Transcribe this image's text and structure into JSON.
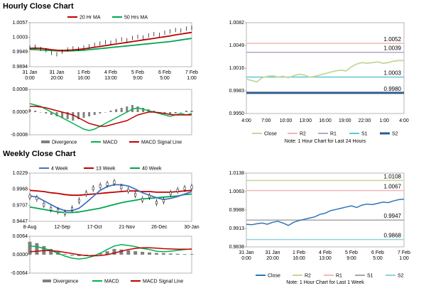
{
  "sections": {
    "hourly_title": "Hourly Close Chart",
    "weekly_title": "Weekly Close Chart"
  },
  "colors": {
    "ma_short": "#c00000",
    "ma_long": "#00a651",
    "macd": "#00b050",
    "macd_signal": "#c00000",
    "divergence": "#808080",
    "close_hourly": "#c4d79b",
    "close_weekly": "#2e75b6",
    "short_ma_weekly": "#4472c4",
    "r2": "#f4b6b6",
    "r1": "#b7a6c9",
    "s1": "#5bc8d8",
    "s2": "#2e5c8a",
    "r2_weekly": "#c4d79b",
    "r1_weekly": "#f4b6b6",
    "s1_weekly": "#a6a6a6",
    "s2_weekly": "#8fd3e0"
  },
  "chart_data": [
    {
      "id": "hourly_price",
      "type": "line",
      "legend": [
        "20 Hr MA",
        "50 Hrs MA"
      ],
      "y_ticks": [
        "1.0057",
        "1.0003",
        "0.9949",
        "0.9894"
      ],
      "ylim": [
        0.9894,
        1.0057
      ],
      "x_ticks": [
        "31 Jan\n0:00",
        "31 Jan\n20:00",
        "1 Feb\n16:00",
        "4 Feb\n13:00",
        "5 Feb\n9:00",
        "6 Feb\n5:00",
        "7 Feb\n1:00"
      ],
      "close": [
        0.9965,
        0.9968,
        0.996,
        0.9955,
        0.9945,
        0.994,
        0.995,
        0.9958,
        0.9962,
        0.996,
        0.9965,
        0.997,
        0.9975,
        0.998,
        0.9985,
        0.9983,
        0.999,
        0.9995,
        0.9992,
        1.0,
        1.0005,
        1.0002,
        1.001,
        1.0015,
        1.0012,
        1.002,
        1.0025,
        1.003,
        1.0028,
        1.0035,
        1.0038
      ],
      "ma20": [
        0.9962,
        0.9963,
        0.9962,
        0.996,
        0.9957,
        0.9955,
        0.9954,
        0.9955,
        0.9956,
        0.9958,
        0.996,
        0.9963,
        0.9966,
        0.9969,
        0.9972,
        0.9975,
        0.9978,
        0.9981,
        0.9984,
        0.9987,
        0.999,
        0.9993,
        0.9996,
        0.9999,
        1.0002,
        1.0005,
        1.0008,
        1.0012,
        1.0015,
        1.0018,
        1.0021
      ],
      "ma50": [
        0.9958,
        0.9957,
        0.9956,
        0.9955,
        0.9954,
        0.9953,
        0.9952,
        0.9952,
        0.9953,
        0.9954,
        0.9955,
        0.9957,
        0.9959,
        0.9961,
        0.9963,
        0.9965,
        0.9967,
        0.9969,
        0.9971,
        0.9973,
        0.9975,
        0.9977,
        0.9979,
        0.9981,
        0.9983,
        0.9985,
        0.9987,
        0.999,
        0.9993,
        0.9996,
        0.9999
      ]
    },
    {
      "id": "hourly_macd",
      "type": "bar+line",
      "legend": [
        "Divergence",
        "MACD",
        "MACD Signal Line"
      ],
      "y_ticks": [
        "0.0008",
        "0.0000",
        "-0.0008"
      ],
      "ylim": [
        -0.0008,
        0.0008
      ],
      "divergence": [
        0.0001,
        5e-05,
        0,
        -5e-05,
        -0.0001,
        -0.00015,
        -0.0002,
        -0.00025,
        -0.0003,
        -0.00025,
        -0.0002,
        -0.00015,
        -0.0001,
        -5e-05,
        0,
        5e-05,
        0.0001,
        0.00015,
        0.0002,
        0.00025,
        0.0002,
        0.00015,
        0.0001,
        5e-05,
        0,
        -5e-05,
        -0.0001,
        -5e-05,
        0,
        5e-05,
        5e-05
      ],
      "macd": [
        0.0003,
        0.00025,
        0.0002,
        0.0001,
        0,
        -0.0001,
        -0.0002,
        -0.0003,
        -0.0004,
        -0.0005,
        -0.0006,
        -0.00065,
        -0.0006,
        -0.0005,
        -0.0004,
        -0.0003,
        -0.0002,
        -0.0001,
        0,
        0.0001,
        0.00015,
        0.0001,
        5e-05,
        0,
        -5e-05,
        -0.0001,
        -0.00015,
        -0.0001,
        -5e-05,
        -0.0001,
        -5e-05
      ],
      "signal": [
        0.0002,
        0.0002,
        0.00018,
        0.00015,
        0.0001,
        5e-05,
        0,
        -5e-05,
        -0.0001,
        -0.0002,
        -0.0003,
        -0.0004,
        -0.00045,
        -0.0005,
        -0.0005,
        -0.00045,
        -0.0004,
        -0.00035,
        -0.0003,
        -0.0002,
        -0.0001,
        -5e-05,
        0,
        0,
        -2e-05,
        -5e-05,
        -8e-05,
        -0.0001,
        -0.0001,
        -0.0001,
        -0.0001
      ]
    },
    {
      "id": "hourly_levels",
      "type": "line",
      "y_ticks": [
        "1.0082",
        "1.0049",
        "1.0016",
        "0.9983",
        "0.9950"
      ],
      "ylim": [
        0.995,
        1.0082
      ],
      "x_ticks": [
        "4:00",
        "7:00",
        "10:00",
        "13:00",
        "16:00",
        "19:00",
        "22:00",
        "1:00",
        "4:00"
      ],
      "level_labels": [
        "1.0052",
        "1.0039",
        "1.0003",
        "0.9980"
      ],
      "levels": {
        "R2": 1.0052,
        "R1": 1.0039,
        "S1": 1.0003,
        "S2": 0.998
      },
      "close": [
        1.0,
        0.9998,
        0.9996,
        1.0002,
        1.0004,
        1.0005,
        1.0003,
        1.0004,
        1.0002,
        1.0005,
        1.0007,
        1.0006,
        1.0003,
        1.0004,
        1.0006,
        1.0008,
        1.001,
        1.0012,
        1.0013,
        1.0012,
        1.0018,
        1.0022,
        1.0024,
        1.0023,
        1.0024,
        1.0025,
        1.0023,
        1.0024,
        1.0026,
        1.0027,
        1.0027
      ],
      "legend": [
        "Close",
        "R2",
        "R1",
        "S1",
        "S2"
      ],
      "note": "Note: 1 Hour Chart for Last 24 Hours"
    },
    {
      "id": "weekly_price",
      "type": "line",
      "legend": [
        "4 Week",
        "13 Week",
        "40 Week"
      ],
      "y_ticks": [
        "1.0229",
        "0.9968",
        "0.9707",
        "0.9447"
      ],
      "ylim": [
        0.9447,
        1.0229
      ],
      "x_ticks": [
        "8-Aug",
        "12-Sep",
        "17-Oct",
        "21-Nov",
        "26-Dec",
        "30-Jan"
      ],
      "close": [
        0.985,
        0.982,
        0.972,
        0.965,
        0.962,
        0.958,
        0.965,
        0.978,
        0.99,
        0.998,
        1.002,
        1.005,
        1.008,
        1.0,
        0.995,
        0.988,
        0.98,
        0.985,
        0.975,
        0.978,
        0.99,
        0.995,
        0.998,
        1.0
      ],
      "ma4": [
        0.986,
        0.984,
        0.978,
        0.972,
        0.966,
        0.962,
        0.962,
        0.966,
        0.975,
        0.985,
        0.995,
        1.001,
        1.004,
        1.004,
        1.002,
        0.997,
        0.991,
        0.987,
        0.983,
        0.98,
        0.982,
        0.985,
        0.989,
        0.993
      ],
      "ma13": [
        0.995,
        0.994,
        0.993,
        0.991,
        0.99,
        0.988,
        0.987,
        0.987,
        0.988,
        0.989,
        0.99,
        0.991,
        0.992,
        0.993,
        0.994,
        0.994,
        0.993,
        0.993,
        0.992,
        0.992,
        0.992,
        0.993,
        0.994,
        0.995
      ],
      "ma40": [
        0.968,
        0.966,
        0.964,
        0.962,
        0.96,
        0.959,
        0.959,
        0.96,
        0.962,
        0.964,
        0.966,
        0.969,
        0.972,
        0.975,
        0.977,
        0.979,
        0.981,
        0.982,
        0.983,
        0.984,
        0.985,
        0.986,
        0.988,
        0.989
      ]
    },
    {
      "id": "weekly_macd",
      "type": "bar+line",
      "legend": [
        "Divergence",
        "MACD",
        "MACD Signal Line"
      ],
      "y_ticks": [
        "0.0064",
        "0.0000",
        "-0.0064"
      ],
      "ylim": [
        -0.0064,
        0.0064
      ],
      "divergence": [
        0.0045,
        0.004,
        0.003,
        0.002,
        0.001,
        0.0002,
        -0.0003,
        -0.0005,
        -0.0004,
        -0.0002,
        0.0005,
        0.0012,
        0.002,
        0.0018,
        0.0015,
        0.0012,
        0.001,
        0.0008,
        0.0006,
        0.0005,
        0.0004,
        0.0003,
        0.0002,
        0.0002
      ],
      "macd": [
        0.003,
        0.0028,
        0.0022,
        0.0015,
        0.0005,
        -0.0005,
        -0.0012,
        -0.0015,
        -0.0012,
        -0.0005,
        0.0005,
        0.0018,
        0.003,
        0.0035,
        0.0032,
        0.0028,
        0.0022,
        0.0018,
        0.0012,
        0.001,
        0.0012,
        0.0015,
        0.0018,
        0.002
      ],
      "signal": [
        0.001,
        0.0012,
        0.0014,
        0.0014,
        0.0012,
        0.0008,
        0.0004,
        0.0,
        -0.0003,
        -0.0004,
        -0.0003,
        0.0,
        0.0006,
        0.0012,
        0.0018,
        0.0022,
        0.0024,
        0.0024,
        0.0023,
        0.0021,
        0.002,
        0.0019,
        0.0019,
        0.0019
      ]
    },
    {
      "id": "weekly_levels",
      "type": "line",
      "y_ticks": [
        "1.0138",
        "1.0063",
        "0.9988",
        "0.9913",
        "0.9838"
      ],
      "ylim": [
        0.9838,
        1.0138
      ],
      "x_ticks": [
        "31 Jan\n0:00",
        "31 Jan\n20:00",
        "1 Feb\n16:00",
        "4 Feb\n13:00",
        "5 Feb\n9:00",
        "6 Feb\n5:00",
        "7 Feb\n1:00"
      ],
      "level_labels": [
        "1.0108",
        "1.0067",
        "0.9947",
        "0.9868"
      ],
      "levels": {
        "R2": 1.0108,
        "R1": 1.0067,
        "S1": 0.9947,
        "S2": 0.9868
      },
      "close": [
        0.993,
        0.9928,
        0.9932,
        0.9935,
        0.993,
        0.9938,
        0.9942,
        0.9935,
        0.9925,
        0.9938,
        0.9945,
        0.995,
        0.9955,
        0.996,
        0.997,
        0.9975,
        0.9985,
        0.999,
        0.9995,
        1.0,
        1.0005,
        0.9998,
        1.0008,
        1.0012,
        1.001,
        1.0015,
        1.002,
        1.0018,
        1.0025,
        1.003,
        1.0032
      ],
      "legend": [
        "Close",
        "R2",
        "R1",
        "S1",
        "S2"
      ],
      "note": "Note: 1 Hour Chart for Last 1 Week"
    }
  ]
}
